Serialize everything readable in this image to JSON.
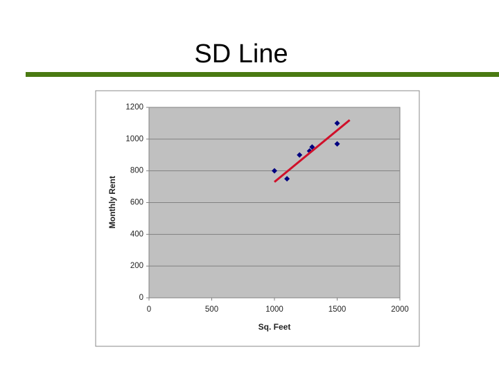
{
  "chart_data": {
    "type": "scatter",
    "title": "SD Line",
    "xlabel": "Sq. Feet",
    "ylabel": "Monthly Rent",
    "xlim": [
      0,
      2000
    ],
    "xticks": [
      0,
      500,
      1000,
      1500,
      2000
    ],
    "ylim": [
      0,
      1200
    ],
    "yticks": [
      0,
      200,
      400,
      600,
      800,
      1000,
      1200
    ],
    "grid": true,
    "series": [
      {
        "type": "scatter",
        "color": "#000080",
        "x": [
          1000,
          1100,
          1200,
          1280,
          1300,
          1500,
          1500
        ],
        "values": [
          800,
          750,
          900,
          925,
          950,
          1100,
          970
        ]
      },
      {
        "type": "line",
        "color": "#d0102a",
        "x": [
          1000,
          1600
        ],
        "values": [
          730,
          1120
        ]
      }
    ]
  }
}
